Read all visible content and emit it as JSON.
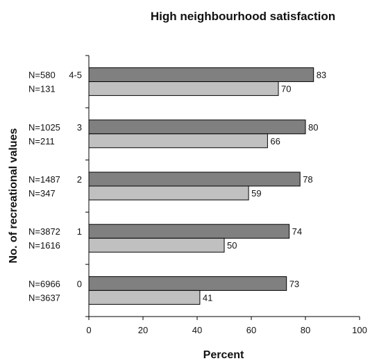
{
  "chart_data": {
    "type": "bar",
    "orientation": "horizontal",
    "title": "High neighbourhood satisfaction",
    "xlabel": "Percent",
    "ylabel": "No. of recreational values",
    "xlim": [
      0,
      100
    ],
    "xticks": [
      "0",
      "20",
      "40",
      "60",
      "80",
      "100"
    ],
    "grid": false,
    "categories": [
      "4-5",
      "3",
      "2",
      "1",
      "0"
    ],
    "series": [
      {
        "color": "#808080",
        "values": [
          83,
          80,
          78,
          74,
          73
        ],
        "n_labels": [
          "N=580",
          "N=1025",
          "N=1487",
          "N=3872",
          "N=6966"
        ]
      },
      {
        "color": "#c0c0c0",
        "values": [
          70,
          66,
          59,
          50,
          41
        ],
        "n_labels": [
          "N=131",
          "N=211",
          "N=347",
          "N=1616",
          "N=3637"
        ]
      }
    ]
  }
}
